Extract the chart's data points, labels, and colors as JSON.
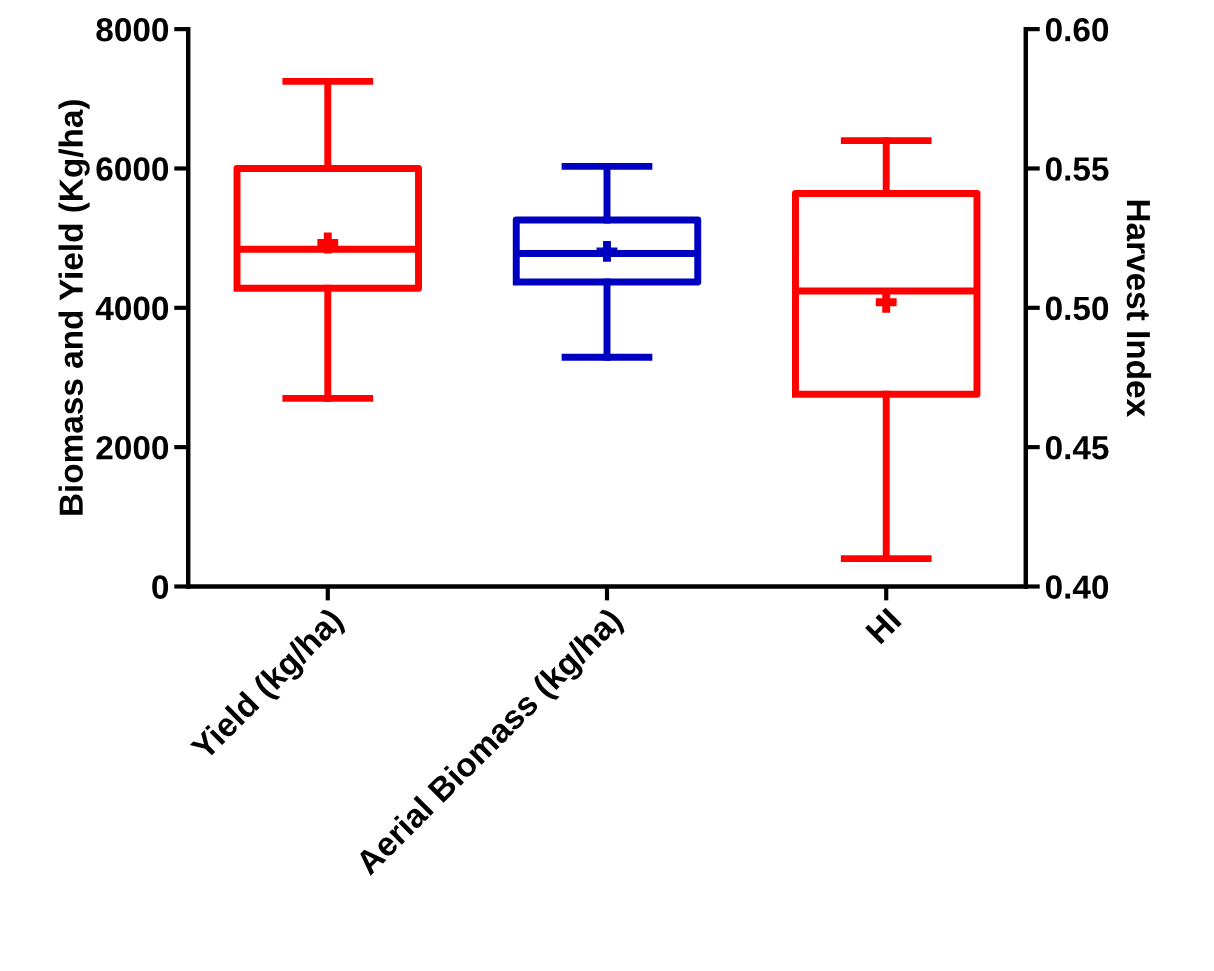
{
  "chart_data": {
    "type": "box",
    "categories": [
      "Yield (kg/ha)",
      "Aerial Biomass (kg/ha)",
      "HI"
    ],
    "ylabel": "Biomass and Yield (Kg/ha)",
    "y2label": "Harvest Index",
    "ylim": [
      0,
      8000
    ],
    "yticks": [
      0,
      2000,
      4000,
      6000,
      8000
    ],
    "y2lim": [
      0.4,
      0.6
    ],
    "y2ticks": [
      {
        "value": 0.4,
        "label": "0.40"
      },
      {
        "value": 0.45,
        "label": "0.45"
      },
      {
        "value": 0.5,
        "label": "0.50"
      },
      {
        "value": 0.55,
        "label": "0.55"
      },
      {
        "value": 0.6,
        "label": "0.60"
      }
    ],
    "grid": false,
    "legend": false,
    "series": [
      {
        "color": "#ff0000",
        "boxes": [
          {
            "low": 2700,
            "q1": 4280,
            "median": 4840,
            "q3": 6000,
            "high": 7250,
            "mean": 4930
          },
          null,
          null
        ]
      },
      {
        "color": "#0000c0",
        "boxes": [
          null,
          {
            "low": 3290,
            "q1": 4370,
            "median": 4780,
            "q3": 5260,
            "high": 6030,
            "mean": 4810
          },
          null
        ]
      },
      {
        "color": "#ff0000",
        "axis": "y2",
        "boxes": [
          null,
          null,
          {
            "low": 0.41,
            "q1": 0.469,
            "median": 0.506,
            "q3": 0.541,
            "high": 0.56,
            "mean": 0.502
          }
        ]
      }
    ]
  }
}
